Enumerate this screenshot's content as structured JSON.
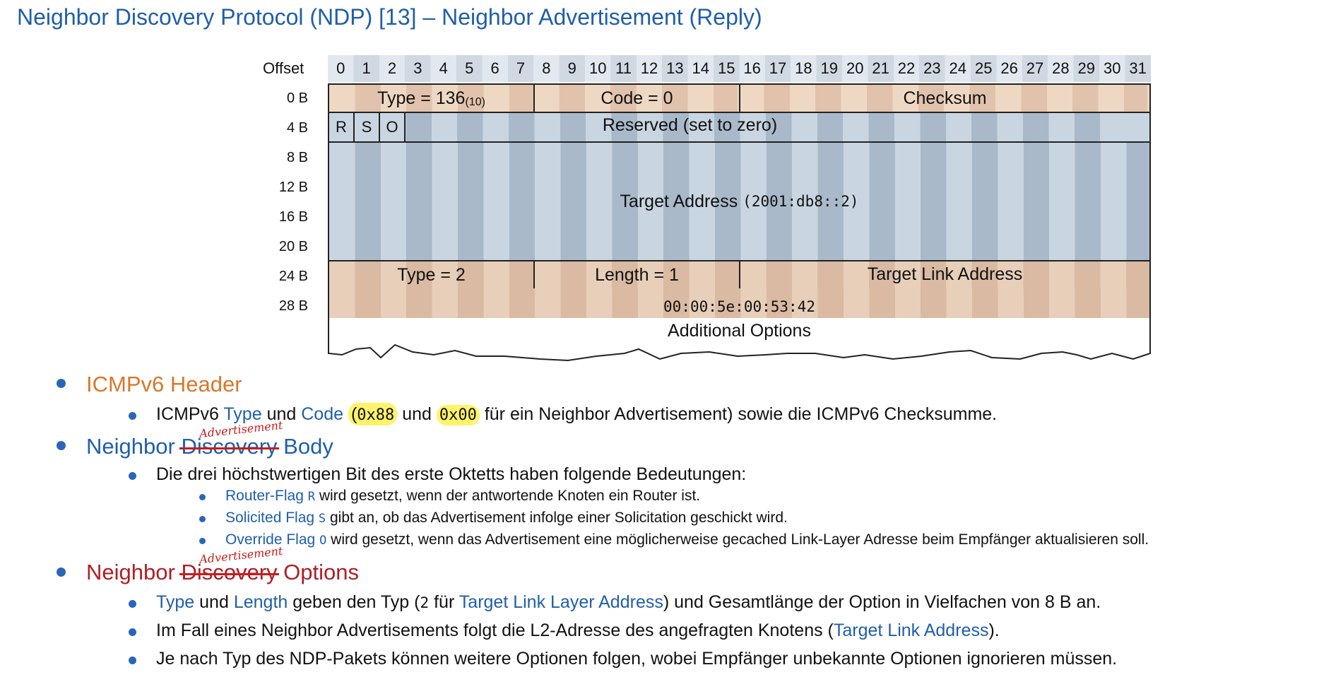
{
  "title": "Neighbor Discovery Protocol (NDP) [13] – Neighbor Advertisement (Reply)",
  "diagram": {
    "offset_header": "Offset",
    "columns": [
      "0",
      "1",
      "2",
      "3",
      "4",
      "5",
      "6",
      "7",
      "8",
      "9",
      "10",
      "11",
      "12",
      "13",
      "14",
      "15",
      "16",
      "17",
      "18",
      "19",
      "20",
      "21",
      "22",
      "23",
      "24",
      "25",
      "26",
      "27",
      "28",
      "29",
      "30",
      "31"
    ],
    "row_offsets": [
      "0 B",
      "4 B",
      "8 B",
      "12 B",
      "16 B",
      "20 B",
      "24 B",
      "28 B"
    ],
    "fields": {
      "type": "Type = 136",
      "type_sub": "(10)",
      "code": "Code = 0",
      "checksum": "Checksum",
      "flag_r": "R",
      "flag_s": "S",
      "flag_o": "O",
      "reserved": "Reserved (set to zero)",
      "target_address": "Target Address",
      "target_address_value": "(2001:db8::2)",
      "opt_type": "Type = 2",
      "opt_length": "Length = 1",
      "target_link_address": "Target Link Address",
      "mac_value": "00:00:5e:00:53:42",
      "additional_options": "Additional Options"
    }
  },
  "bullets": {
    "icmp_header": {
      "title": "ICMPv6 Header",
      "text_1": "ICMPv6",
      "type": "Type",
      "und_1": "und",
      "code": "Code",
      "paren_open": "(",
      "hex_type": "0x88",
      "und_2": "und",
      "hex_code": "0x00",
      "text_end": "für ein Neighbor Advertisement) sowie die ICMPv6 Checksumme."
    },
    "nd_body": {
      "title_a": "Neighbor",
      "title_struck": "Discovery",
      "title_b": "Body",
      "handwriting": "Advertisement",
      "sub_1": "Die drei höchstwertigen Bit des erste Oktetts haben folgende Bedeutungen:",
      "flags": [
        {
          "name": "Router-Flag",
          "letter": "R",
          "desc": "wird gesetzt, wenn der antwortende Knoten ein Router ist."
        },
        {
          "name": "Solicited Flag",
          "letter": "S",
          "desc": "gibt an, ob das Advertisement infolge einer Solicitation geschickt wird."
        },
        {
          "name": "Override Flag",
          "letter": "O",
          "desc": "wird gesetzt, wenn das Advertisement eine möglicherweise gecached Link-Layer Adresse beim Empfänger aktualisieren soll."
        }
      ]
    },
    "nd_options": {
      "title_a": "Neighbor",
      "title_struck": "Discovery",
      "title_b": "Options",
      "handwriting": "Advertisement",
      "line_1": {
        "type": "Type",
        "und": "und",
        "length": "Length",
        "mid": "geben den Typ (",
        "num": "2",
        "fuer": "für",
        "tlla": "Target Link Layer Address",
        "end": ") und Gesamtlänge der Option in Vielfachen von 8 B an."
      },
      "line_2": {
        "pre": "Im Fall eines Neighbor Advertisements folgt die L2-Adresse des angefragten Knotens (",
        "tla": "Target Link Address",
        "post": ")."
      },
      "line_3": "Je nach Typ des NDP-Pakets können weitere Optionen folgen, wobei Empfänger unbekannte Optionen ignorieren müssen."
    }
  }
}
